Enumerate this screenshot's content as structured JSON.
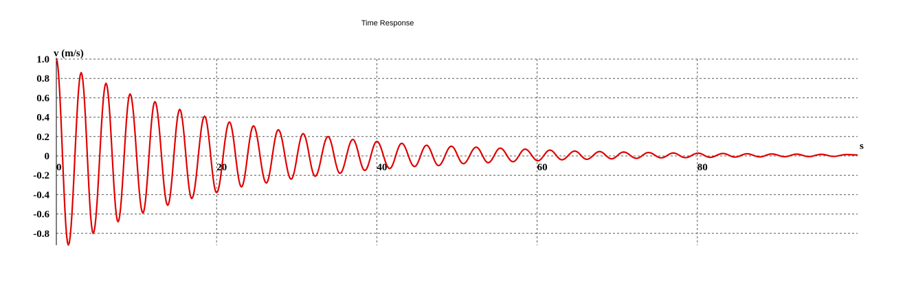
{
  "chart_data": {
    "type": "line",
    "title": "Time Response",
    "xlabel": "s",
    "ylabel": "v (m/s)",
    "xlim": [
      0,
      100
    ],
    "ylim": [
      -0.92,
      1.0
    ],
    "x_ticks": [
      0,
      20,
      40,
      60,
      80
    ],
    "x_tick_labels": [
      "0",
      "20",
      "40",
      "60",
      "80"
    ],
    "y_ticks": [
      1.0,
      0.8,
      0.6,
      0.4,
      0.2,
      0,
      -0.2,
      -0.4,
      -0.6,
      -0.8
    ],
    "y_tick_labels": [
      "1.0",
      "0.8",
      "0.6",
      "0.4",
      "0.2",
      "0",
      "-0.2",
      "-0.4",
      "-0.6",
      "-0.8"
    ],
    "grid": true,
    "colors": {
      "series": "#e00000",
      "grid": "#555555",
      "axis": "#000000"
    },
    "series": [
      {
        "color": "#e00000",
        "x": [
          0,
          1.5,
          3.1,
          4.6,
          6.2,
          7.7,
          9.2,
          10.8,
          12.3,
          13.9,
          15.4,
          16.9,
          18.5,
          20.0,
          21.6,
          23.1,
          24.6,
          26.2,
          27.7,
          29.3,
          30.8,
          32.3,
          33.9,
          35.4,
          37.0,
          38.5,
          40.0,
          41.6,
          43.1,
          44.7,
          46.2,
          47.7,
          49.3,
          50.8,
          52.4,
          53.9,
          55.4,
          57.0,
          58.5,
          60.1,
          61.6,
          63.1,
          64.7,
          66.2,
          67.8,
          69.3,
          70.8,
          72.4,
          73.9,
          75.5,
          77.0,
          78.5,
          80.1,
          81.6,
          83.2,
          84.7,
          86.2,
          87.8,
          89.3,
          90.9,
          92.4,
          93.9,
          95.5,
          97.0,
          98.6,
          100.0
        ],
        "y": [
          1.0,
          -0.92,
          0.86,
          -0.8,
          0.75,
          -0.68,
          0.64,
          -0.59,
          0.56,
          -0.51,
          0.48,
          -0.44,
          0.41,
          -0.38,
          0.35,
          -0.32,
          0.31,
          -0.28,
          0.27,
          -0.24,
          0.23,
          -0.21,
          0.2,
          -0.18,
          0.17,
          -0.15,
          0.15,
          -0.13,
          0.13,
          -0.11,
          0.11,
          -0.1,
          0.1,
          -0.08,
          0.09,
          -0.07,
          0.08,
          -0.06,
          0.07,
          -0.05,
          0.06,
          -0.04,
          0.05,
          -0.035,
          0.045,
          -0.03,
          0.04,
          -0.025,
          0.035,
          -0.02,
          0.03,
          -0.018,
          0.028,
          -0.015,
          0.025,
          -0.012,
          0.022,
          -0.01,
          0.02,
          -0.008,
          0.018,
          -0.007,
          0.016,
          -0.005,
          0.014,
          0.01
        ]
      }
    ]
  }
}
